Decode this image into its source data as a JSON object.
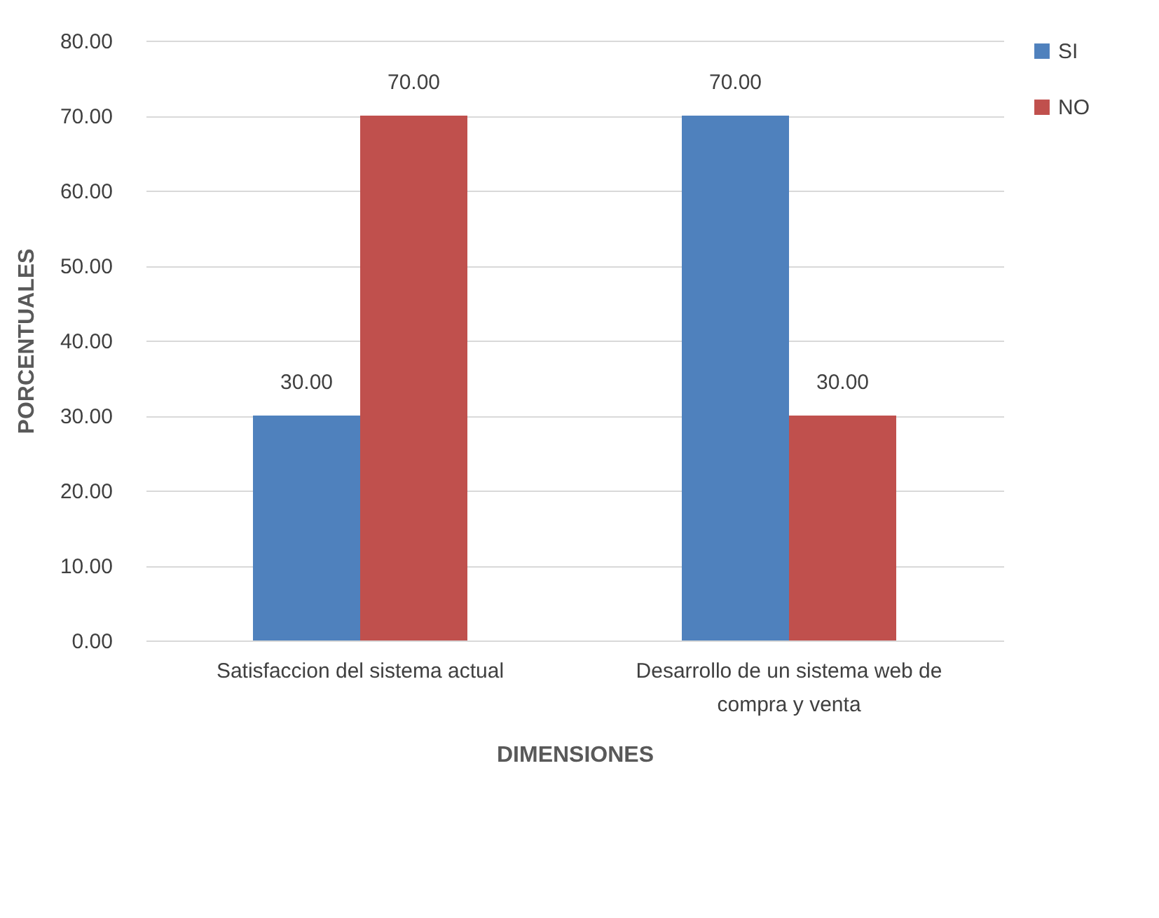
{
  "chart_data": {
    "type": "bar",
    "xlabel": "DIMENSIONES",
    "ylabel": "PORCENTUALES",
    "categories": [
      "Satisfaccion del sistema actual",
      "Desarrollo de un sistema web de compra y venta"
    ],
    "series": [
      {
        "name": "SI",
        "color": "#4f81bd",
        "values": [
          30,
          70
        ],
        "value_labels": [
          "30.00",
          "70.00"
        ]
      },
      {
        "name": "NO",
        "color": "#c0504d",
        "values": [
          70,
          30
        ],
        "value_labels": [
          "70.00",
          "30.00"
        ]
      }
    ],
    "ylim": [
      0,
      80
    ],
    "yticks": [
      {
        "value": 0,
        "label": "0.00"
      },
      {
        "value": 10,
        "label": "10.00"
      },
      {
        "value": 20,
        "label": "20.00"
      },
      {
        "value": 30,
        "label": "30.00"
      },
      {
        "value": 40,
        "label": "40.00"
      },
      {
        "value": 50,
        "label": "50.00"
      },
      {
        "value": 60,
        "label": "60.00"
      },
      {
        "value": 70,
        "label": "70.00"
      },
      {
        "value": 80,
        "label": "80.00"
      }
    ],
    "grid": "y",
    "legend": "right"
  }
}
